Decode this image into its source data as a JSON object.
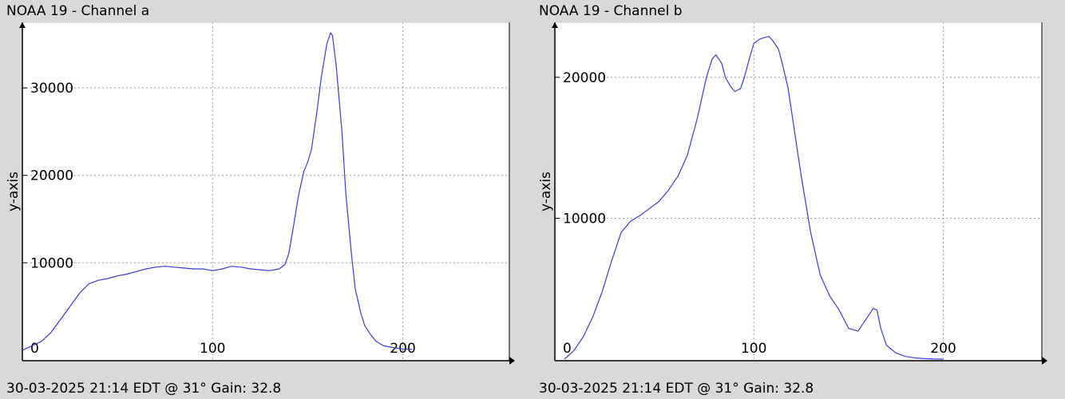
{
  "colors": {
    "series": "#3b3bd0",
    "grid": "#999999",
    "axis": "#000000",
    "plot_bg": "#ffffff",
    "page_bg": "#d9d9d9"
  },
  "chart_data": [
    {
      "type": "line",
      "title": "NOAA 19 - Channel a",
      "footer": "30-03-2025 21:14 EDT @ 31° Gain: 32.8",
      "ylabel": "y-axis",
      "xlim": [
        0,
        256
      ],
      "ylim": [
        -1200,
        37500
      ],
      "xticks": [
        0,
        100,
        200
      ],
      "yticks": [
        10000,
        20000,
        30000
      ],
      "grid": true,
      "series": [
        {
          "x": [
            0,
            5,
            10,
            15,
            20,
            25,
            30,
            35,
            40,
            45,
            50,
            55,
            60,
            65,
            70,
            75,
            80,
            85,
            90,
            95,
            100,
            105,
            110,
            115,
            120,
            125,
            130,
            135,
            138,
            140,
            142,
            145,
            148,
            150,
            152,
            155,
            157,
            160,
            162,
            163,
            165,
            168,
            170,
            173,
            175,
            178,
            180,
            183,
            186,
            190,
            195,
            200,
            205
          ],
          "y": [
            0,
            500,
            1000,
            2000,
            3500,
            5000,
            6500,
            7600,
            8000,
            8200,
            8500,
            8700,
            9000,
            9300,
            9500,
            9600,
            9500,
            9400,
            9300,
            9300,
            9100,
            9300,
            9600,
            9500,
            9300,
            9200,
            9100,
            9300,
            9800,
            11000,
            13500,
            17500,
            20500,
            21500,
            23000,
            27500,
            31000,
            35000,
            36300,
            36000,
            32500,
            25000,
            18000,
            11000,
            7000,
            4200,
            2800,
            1800,
            1000,
            500,
            300,
            150,
            100
          ]
        }
      ]
    },
    {
      "type": "line",
      "title": "NOAA 19 - Channel b",
      "footer": "30-03-2025 21:14 EDT @ 31° Gain: 32.8",
      "ylabel": "y-axis",
      "xlim": [
        -5,
        252
      ],
      "ylim": [
        -100,
        23900
      ],
      "xticks": [
        0,
        100,
        200
      ],
      "yticks": [
        10000,
        20000
      ],
      "grid": true,
      "series": [
        {
          "x": [
            0,
            5,
            10,
            15,
            20,
            25,
            30,
            35,
            40,
            45,
            50,
            55,
            60,
            65,
            70,
            75,
            78,
            80,
            83,
            85,
            88,
            90,
            93,
            95,
            98,
            100,
            103,
            105,
            108,
            110,
            113,
            115,
            118,
            120,
            125,
            130,
            135,
            140,
            145,
            150,
            155,
            160,
            163,
            165,
            167,
            170,
            175,
            180,
            185,
            190,
            195,
            200
          ],
          "y": [
            0,
            600,
            1600,
            3000,
            4800,
            7000,
            9000,
            9800,
            10200,
            10700,
            11200,
            12000,
            13000,
            14500,
            17000,
            20000,
            21300,
            21600,
            21000,
            20000,
            19300,
            19000,
            19200,
            20000,
            21500,
            22400,
            22700,
            22800,
            22900,
            22600,
            22000,
            21000,
            19300,
            17500,
            13000,
            9000,
            6000,
            4500,
            3500,
            2200,
            2000,
            3000,
            3600,
            3500,
            2200,
            1000,
            450,
            200,
            100,
            50,
            20,
            10
          ]
        }
      ]
    }
  ]
}
